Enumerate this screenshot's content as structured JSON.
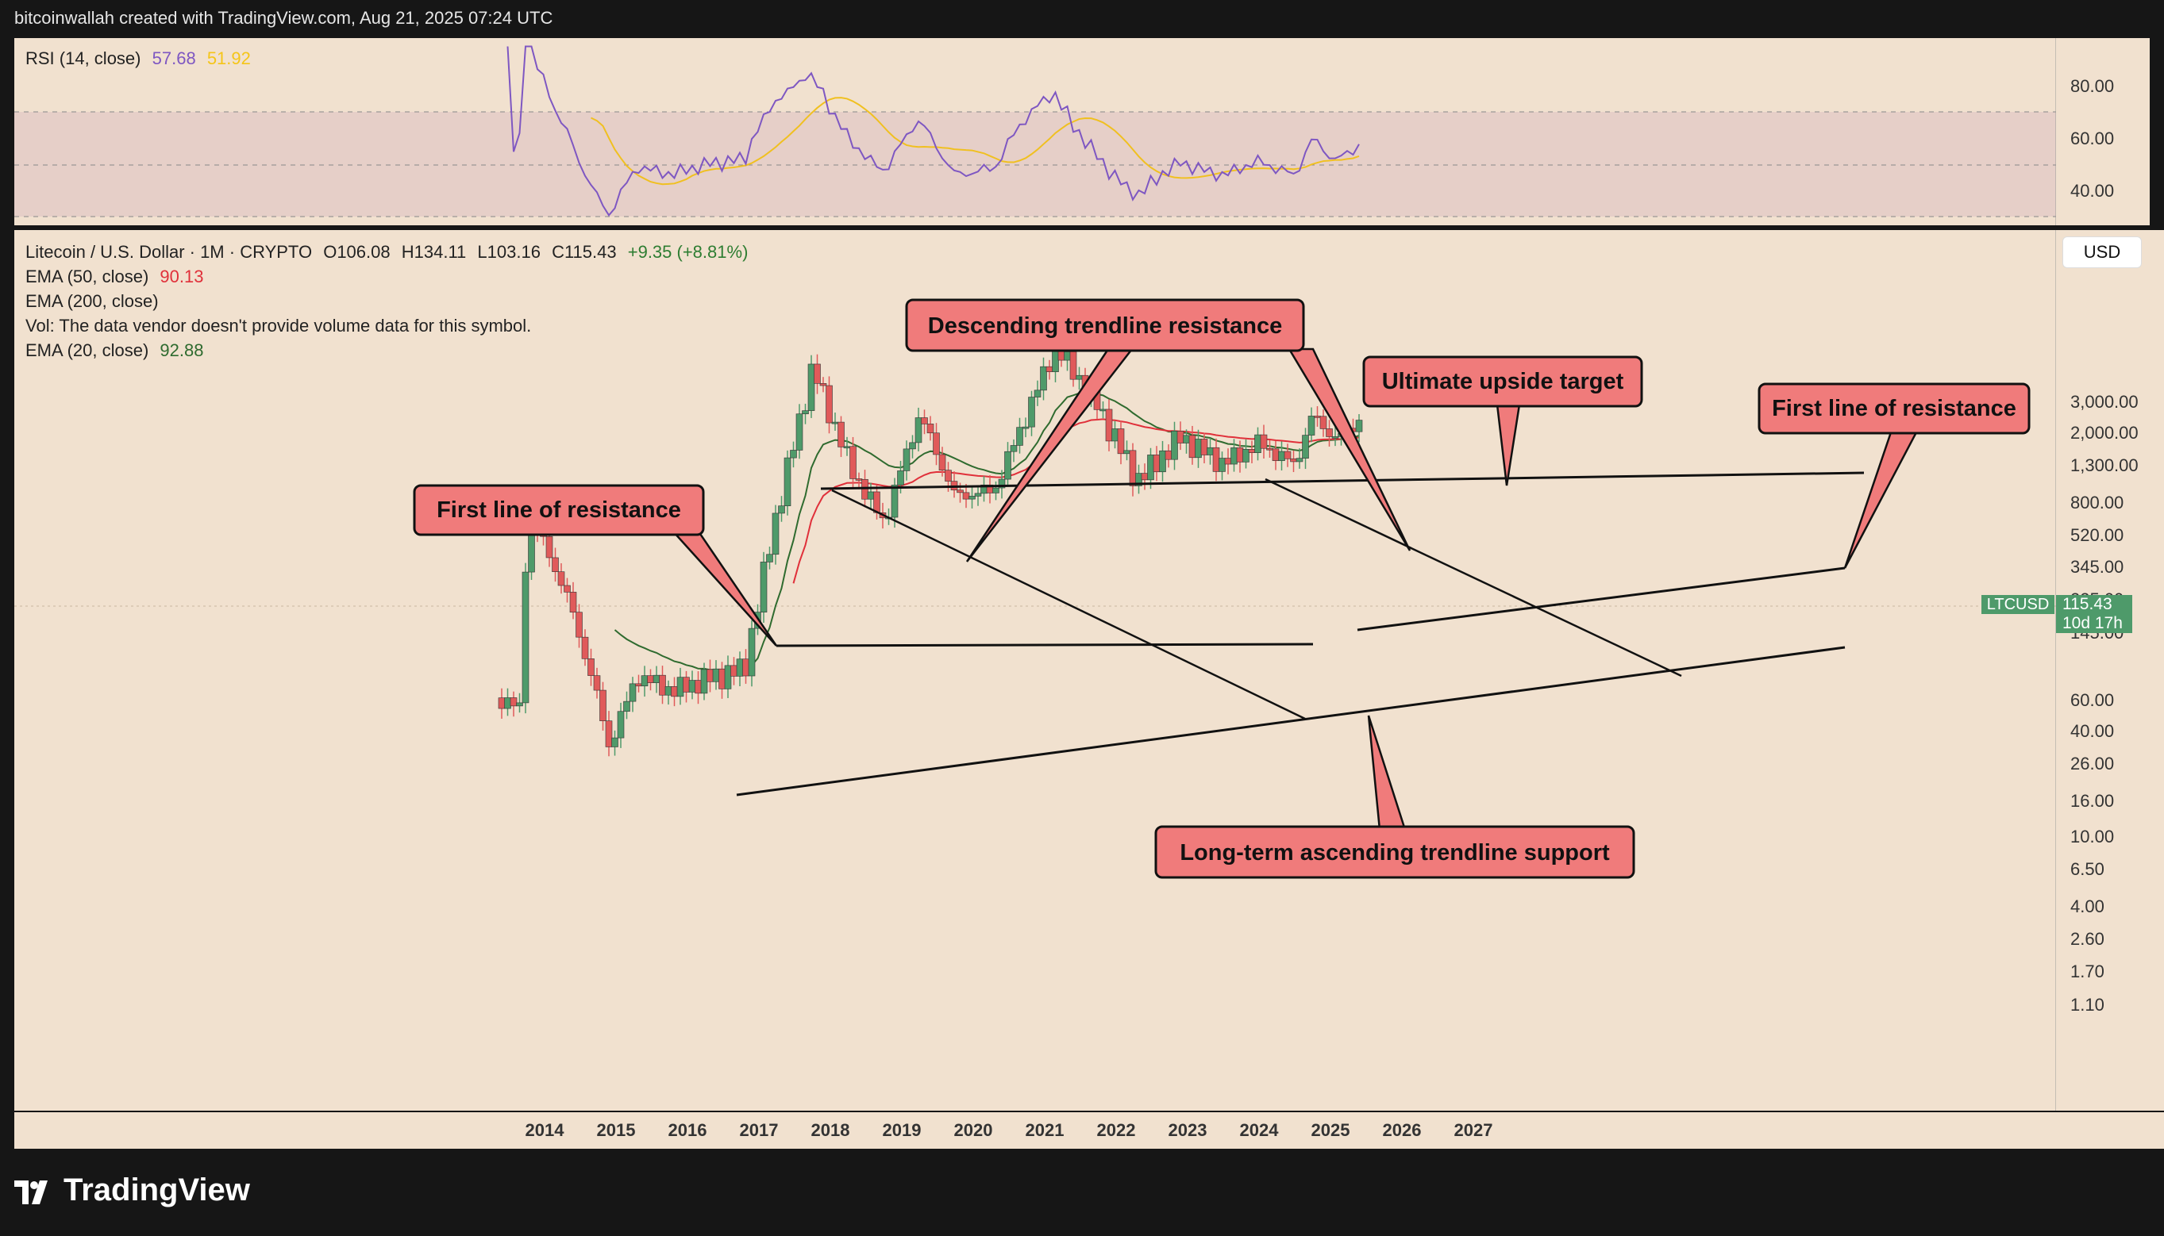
{
  "header": {
    "title": "bitcoinwallah created with TradingView.com, Aug 21, 2025 07:24 UTC"
  },
  "footer": {
    "logo_text": "TradingView"
  },
  "rsi": {
    "label": "RSI (14, close)",
    "value1": "57.68",
    "value2": "51.92",
    "value1_color": "#7e57c2",
    "value2_color": "#f5c518",
    "ticks": [
      "80.00",
      "60.00",
      "40.00"
    ]
  },
  "legend": {
    "symbol_line": "Litecoin / U.S. Dollar · 1M · CRYPTO",
    "open": "O106.08",
    "high": "H134.11",
    "low": "L103.16",
    "close": "C115.43",
    "change": "+9.35 (+8.81%)",
    "ema50_label": "EMA (50, close)",
    "ema50_value": "90.13",
    "ema200_label": "EMA (200, close)",
    "vol_text": "Vol: The data vendor doesn't provide volume data for this symbol.",
    "ema20_label": "EMA (20, close)",
    "ema20_value": "92.88"
  },
  "price_axis": {
    "currency_button": "USD",
    "ticks": [
      "3,000.00",
      "2,000.00",
      "1,300.00",
      "800.00",
      "520.00",
      "345.00",
      "225.00",
      "145.00",
      "60.00",
      "40.00",
      "26.00",
      "16.00",
      "10.00",
      "6.50",
      "4.00",
      "2.60",
      "1.70",
      "1.10"
    ],
    "last_symbol": "LTCUSD",
    "last_price": "115.43",
    "countdown": "10d 17h",
    "last_color": "#4e9a6a"
  },
  "x_axis": {
    "ticks": [
      "2014",
      "2015",
      "2016",
      "2017",
      "2018",
      "2019",
      "2020",
      "2021",
      "2022",
      "2023",
      "2024",
      "2025",
      "2026",
      "2027"
    ]
  },
  "annotations": [
    "Descending trendline resistance",
    "Ultimate upside target",
    "First line of resistance",
    "First line of resistance",
    "Long-term ascending trendline support"
  ],
  "colors": {
    "up": "#4f9a6a",
    "down": "#e05a5a",
    "ema20": "#2f6b2f",
    "ema50": "#e0303a",
    "callout_fill": "#f07b7b",
    "background": "#f1e1cf"
  },
  "chart_data": {
    "type": "candlestick",
    "title": "Litecoin / U.S. Dollar · 1M · CRYPTO",
    "y_scale": "log",
    "ylim": [
      0.8,
      3600
    ],
    "xlim": [
      2013.0,
      2027.5
    ],
    "approximate_monthly_closes": [
      {
        "date": "2013.6",
        "close": 3.0
      },
      {
        "date": "2013.9",
        "close": 2.5
      },
      {
        "date": "2013.95",
        "close": 45
      },
      {
        "date": "2014.1",
        "close": 27
      },
      {
        "date": "2014.5",
        "close": 12
      },
      {
        "date": "2014.9",
        "close": 3.5
      },
      {
        "date": "2015.1",
        "close": 1.6
      },
      {
        "date": "2015.5",
        "close": 4.0
      },
      {
        "date": "2016.0",
        "close": 3.3
      },
      {
        "date": "2016.5",
        "close": 3.9
      },
      {
        "date": "2017.0",
        "close": 4.4
      },
      {
        "date": "2017.4",
        "close": 28
      },
      {
        "date": "2017.95",
        "close": 230
      },
      {
        "date": "2018.5",
        "close": 60
      },
      {
        "date": "2018.95",
        "close": 30
      },
      {
        "date": "2019.45",
        "close": 125
      },
      {
        "date": "2019.95",
        "close": 42
      },
      {
        "date": "2020.5",
        "close": 46
      },
      {
        "date": "2020.95",
        "close": 125
      },
      {
        "date": "2021.35",
        "close": 300
      },
      {
        "date": "2021.9",
        "close": 150
      },
      {
        "date": "2022.5",
        "close": 52
      },
      {
        "date": "2023.1",
        "close": 92
      },
      {
        "date": "2023.7",
        "close": 65
      },
      {
        "date": "2024.2",
        "close": 85
      },
      {
        "date": "2024.7",
        "close": 64
      },
      {
        "date": "2024.95",
        "close": 122
      },
      {
        "date": "2025.3",
        "close": 88
      },
      {
        "date": "2025.6",
        "close": 115.43
      }
    ],
    "ema20": {
      "name": "EMA (20, close)",
      "last": 92.88
    },
    "ema50": {
      "name": "EMA (50, close)",
      "last": 90.13
    },
    "rsi": {
      "name": "RSI (14, close)",
      "last": 57.68,
      "ma_last": 51.92,
      "ylim": [
        30,
        95
      ]
    }
  }
}
